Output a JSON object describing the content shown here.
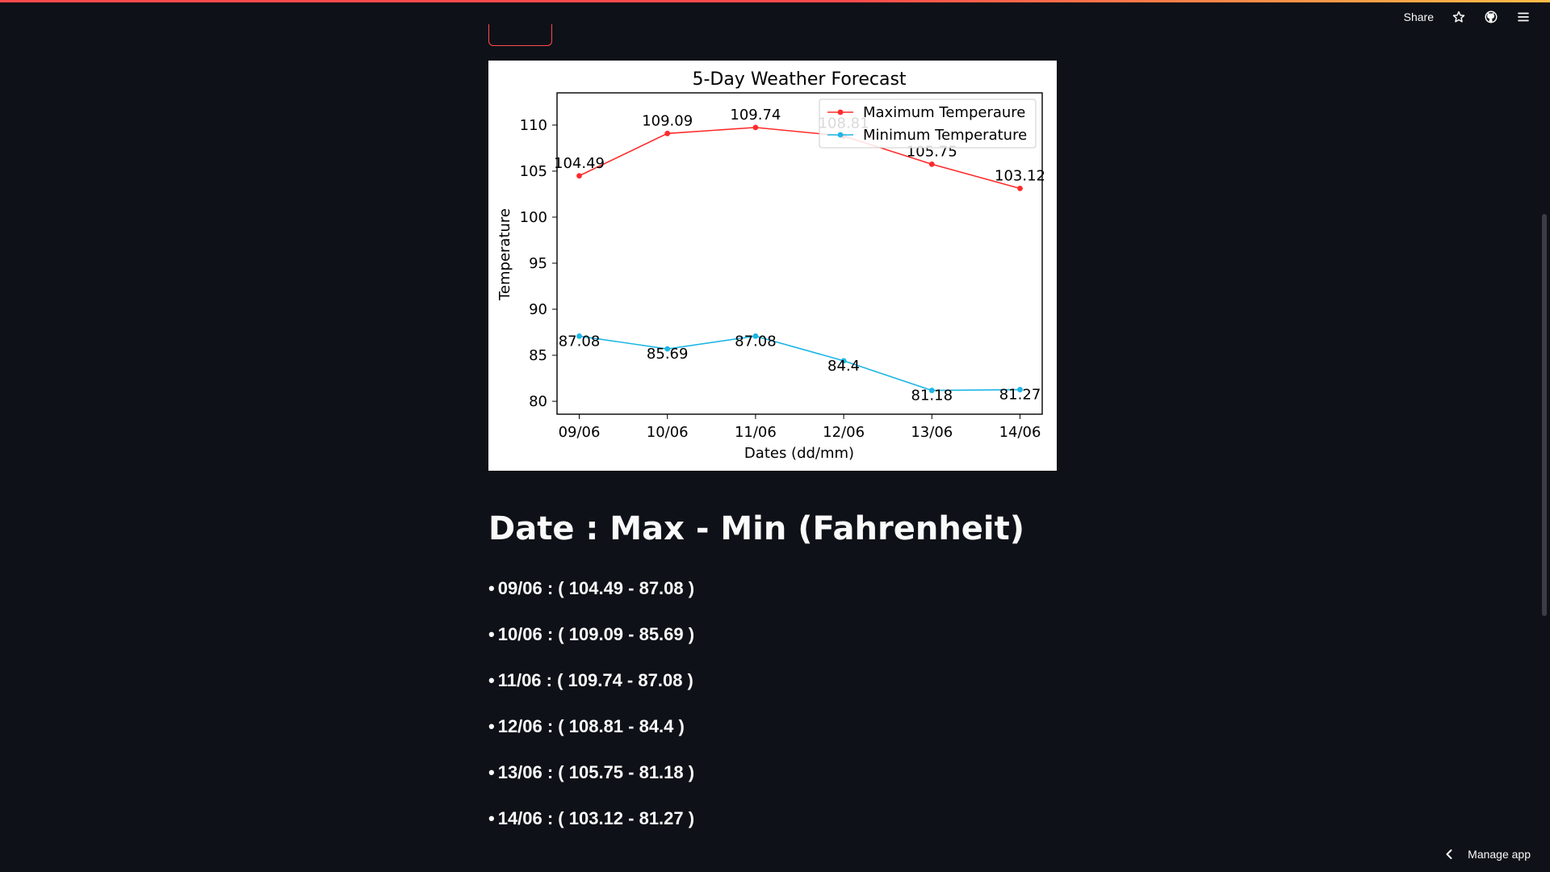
{
  "header": {
    "share_label": "Share",
    "icons": [
      "star-icon",
      "github-icon",
      "menu-icon"
    ]
  },
  "chart_data": {
    "type": "line",
    "title": "5-Day Weather Forecast",
    "xlabel": "Dates (dd/mm)",
    "ylabel": "Temperature",
    "categories": [
      "09/06",
      "10/06",
      "11/06",
      "12/06",
      "13/06",
      "14/06"
    ],
    "yticks": [
      80,
      85,
      90,
      95,
      100,
      105,
      110
    ],
    "ylim": [
      78.6,
      113.5
    ],
    "legend_position": "top-right",
    "grid": false,
    "series": [
      {
        "name": "Maximum Temperaure",
        "color": "#ff2a2a",
        "values": [
          104.49,
          109.09,
          109.74,
          108.81,
          105.75,
          103.12
        ],
        "labels": [
          "104.49",
          "109.09",
          "109.74",
          "108.81",
          "105.75",
          "103.12"
        ]
      },
      {
        "name": "Minimum Temperature",
        "color": "#1fb6e6",
        "values": [
          87.08,
          85.69,
          87.08,
          84.4,
          81.18,
          81.27
        ],
        "labels": [
          "87.08",
          "85.69",
          "87.08",
          "84.4",
          "81.18",
          "81.27"
        ]
      }
    ]
  },
  "summary": {
    "heading": "Date : Max - Min (Fahrenheit)",
    "bullet": "•",
    "items": [
      "09/06 : ( 104.49 - 87.08 )",
      "10/06 : ( 109.09 - 85.69 )",
      "11/06 : ( 109.74 - 87.08 )",
      "12/06 : ( 108.81 - 84.4 )",
      "13/06 : ( 105.75 - 81.18 )",
      "14/06 : ( 103.12 - 81.27 )"
    ]
  },
  "footer": {
    "manage_label": "Manage app"
  }
}
